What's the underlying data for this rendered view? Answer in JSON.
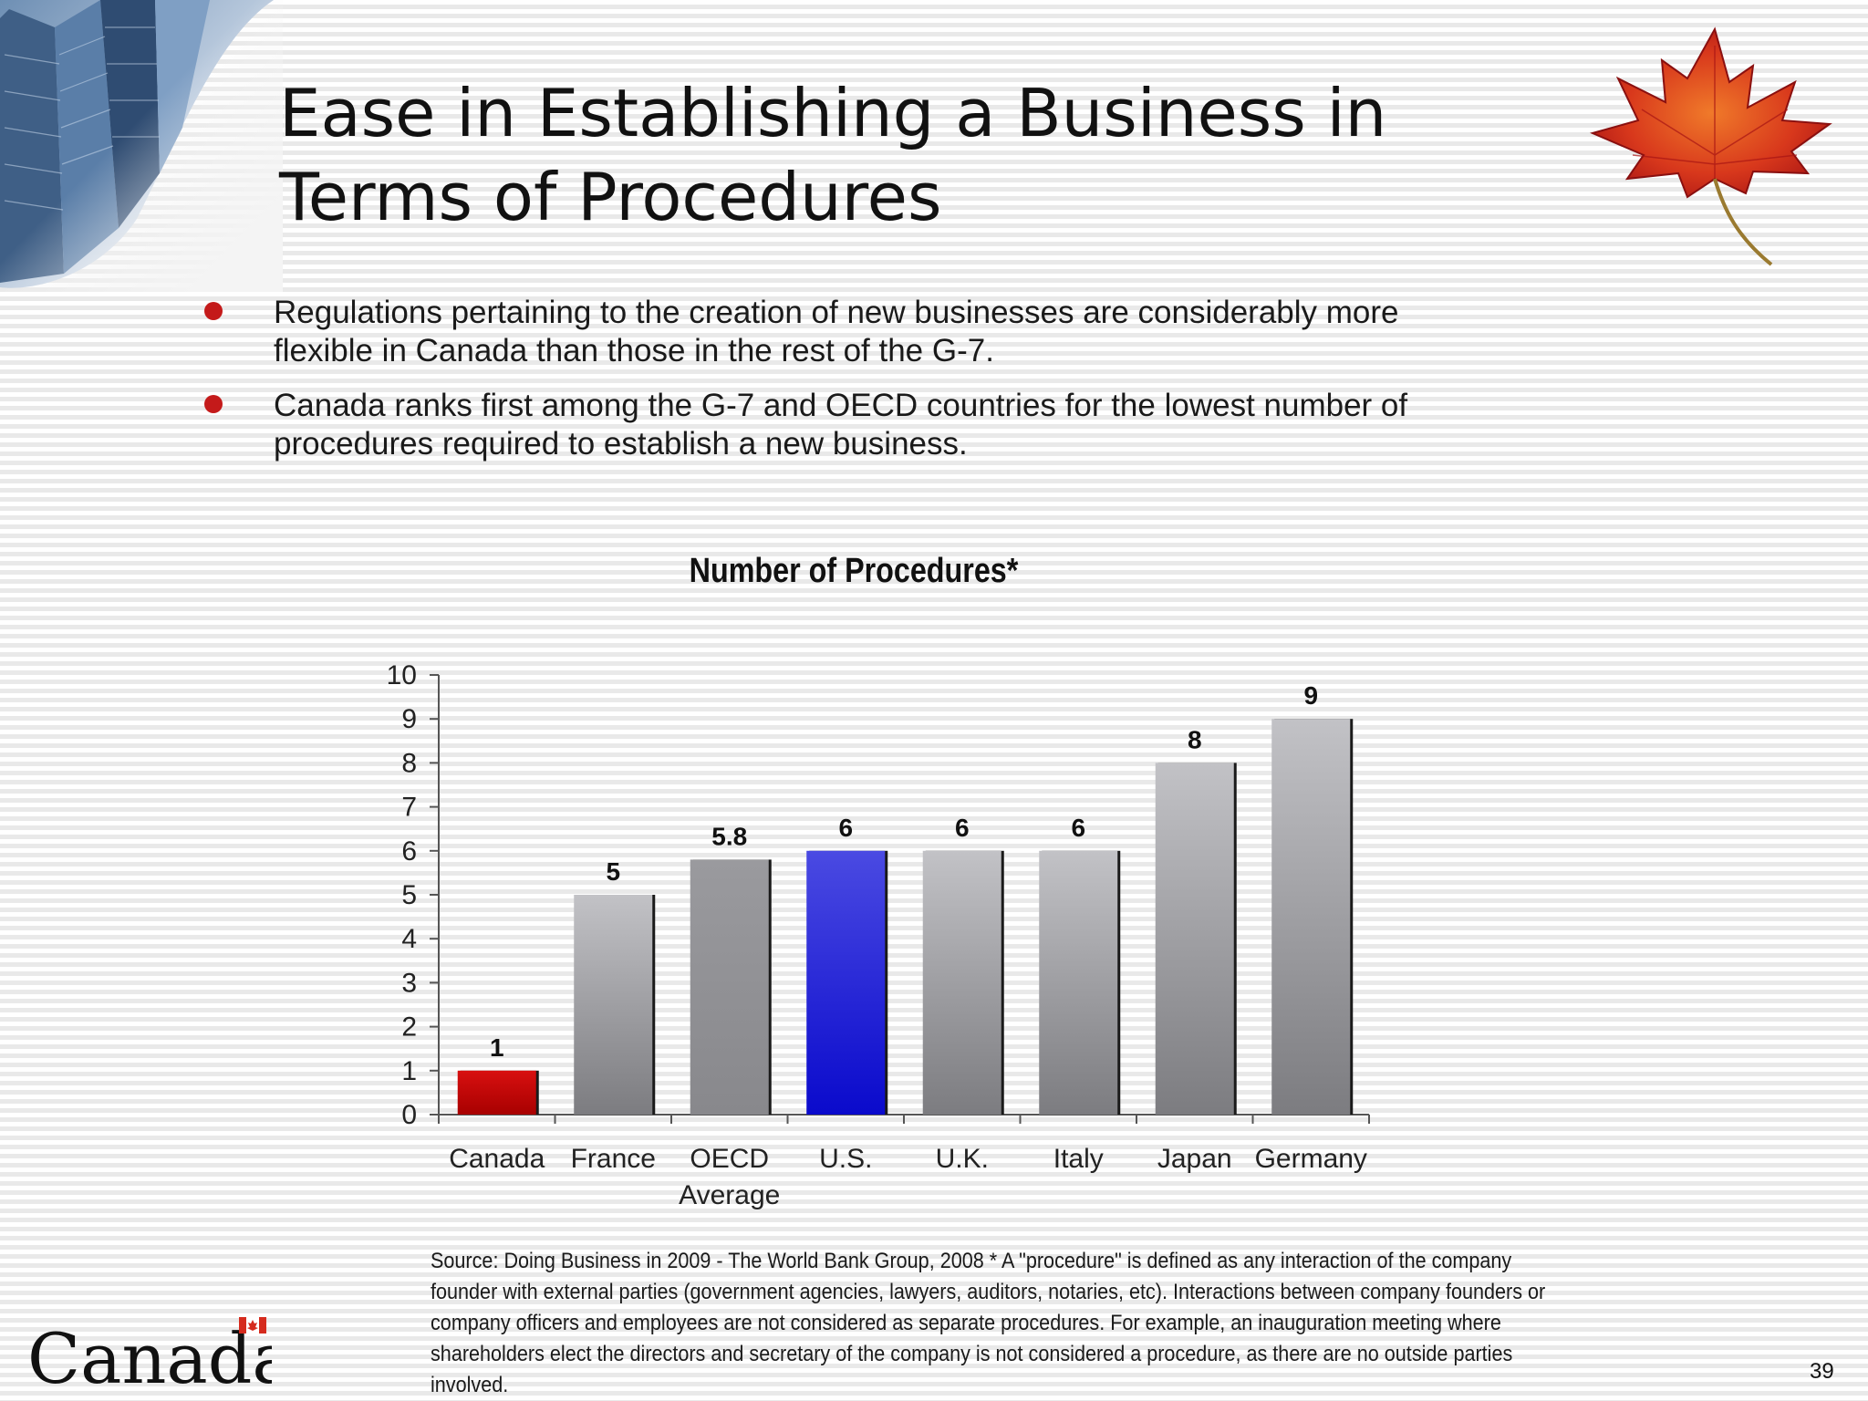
{
  "slide": {
    "title": "Ease in Establishing a Business in Terms of Procedures",
    "bullets": [
      "Regulations pertaining to the creation of new businesses are considerably more flexible in Canada than those in the rest of the G-7.",
      "Canada ranks first among the G-7 and OECD countries for the lowest number of procedures required to establish a new business."
    ],
    "footnote": "Source: Doing Business in 2009 - The World Bank Group, 2008  * A \"procedure\" is defined as any interaction of the company founder with external parties (government agencies, lawyers, auditors, notaries, etc). Interactions between company founders or company officers and employees are not considered as separate procedures. For example, an inauguration meeting where shareholders elect the directors and secretary of the company is not considered a procedure, as there are no outside parties involved.",
    "page_number": "39",
    "logo_text": "Canadä",
    "icons": [
      "office-towers-photo",
      "maple-leaf-icon",
      "canada-flag-icon"
    ]
  },
  "chart_data": {
    "type": "bar",
    "title": "Number of Procedures*",
    "xlabel": "",
    "ylabel": "",
    "categories": [
      "Canada",
      "France",
      "OECD Average",
      "U.S.",
      "U.K.",
      "Italy",
      "Japan",
      "Germany"
    ],
    "values": [
      1,
      5,
      5.8,
      6,
      6,
      6,
      8,
      9
    ],
    "data_labels": [
      "1",
      "5",
      "5.8",
      "6",
      "6",
      "6",
      "8",
      "9"
    ],
    "ylim": [
      0,
      10
    ],
    "yticks": [
      "0",
      "1",
      "2",
      "3",
      "4",
      "5",
      "6",
      "7",
      "8",
      "9",
      "10"
    ],
    "grid": false,
    "legend": "none",
    "bar_colors": [
      "#cc0000",
      "#a8a8a8",
      "#9a9a9a",
      "#2a2ad8",
      "#a0a0a0",
      "#a0a0a0",
      "#a6a6a6",
      "#a6a6a6"
    ]
  }
}
